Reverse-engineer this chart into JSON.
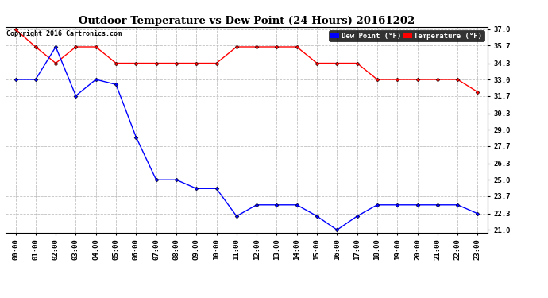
{
  "title": "Outdoor Temperature vs Dew Point (24 Hours) 20161202",
  "copyright": "Copyright 2016 Cartronics.com",
  "x_labels": [
    "00:00",
    "01:00",
    "02:00",
    "03:00",
    "04:00",
    "05:00",
    "06:00",
    "07:00",
    "08:00",
    "09:00",
    "10:00",
    "11:00",
    "12:00",
    "13:00",
    "14:00",
    "15:00",
    "16:00",
    "17:00",
    "18:00",
    "19:00",
    "20:00",
    "21:00",
    "22:00",
    "23:00"
  ],
  "temperature": [
    37.0,
    35.6,
    34.3,
    35.6,
    35.6,
    34.3,
    34.3,
    34.3,
    34.3,
    34.3,
    34.3,
    35.6,
    35.6,
    35.6,
    35.6,
    34.3,
    34.3,
    34.3,
    33.0,
    33.0,
    33.0,
    33.0,
    33.0,
    32.0
  ],
  "dew_point": [
    33.0,
    33.0,
    35.6,
    31.7,
    33.0,
    32.6,
    28.4,
    25.0,
    25.0,
    24.3,
    24.3,
    22.1,
    23.0,
    23.0,
    23.0,
    22.1,
    21.0,
    22.1,
    23.0,
    23.0,
    23.0,
    23.0,
    23.0,
    22.3
  ],
  "temp_color": "#FF0000",
  "dew_color": "#0000FF",
  "bg_color": "#ffffff",
  "grid_color": "#bbbbbb",
  "ylim_min": 21.0,
  "ylim_max": 37.0,
  "yticks": [
    21.0,
    22.3,
    23.7,
    25.0,
    26.3,
    27.7,
    29.0,
    30.3,
    31.7,
    33.0,
    34.3,
    35.7,
    37.0
  ],
  "legend_dew_label": "Dew Point (°F)",
  "legend_temp_label": "Temperature (°F)"
}
